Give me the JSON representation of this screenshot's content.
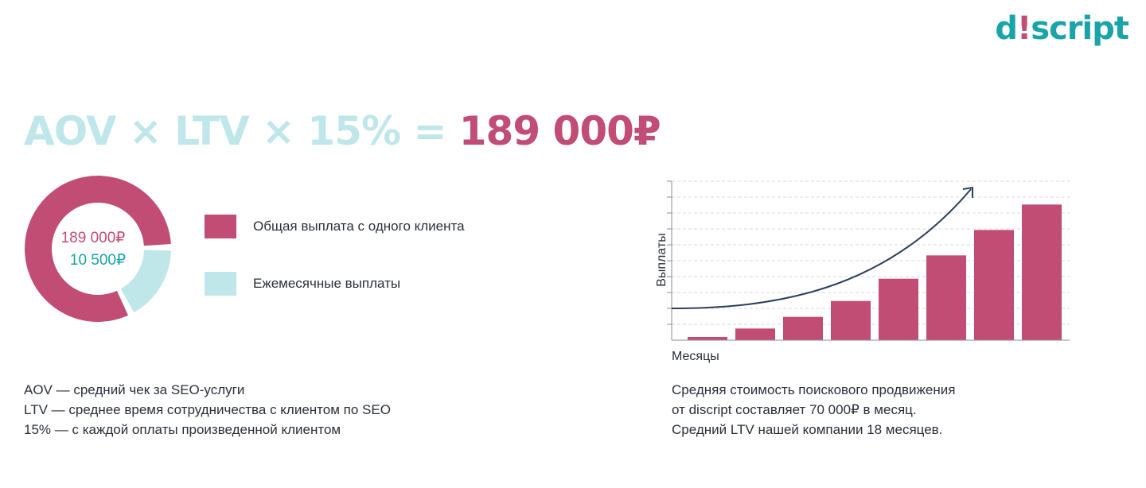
{
  "brand": {
    "logo_text_a": "d",
    "logo_text_dot": "!",
    "logo_text_b": "script",
    "accent_color": "#1aa3a8",
    "brand_color": "#c24d74"
  },
  "formula": {
    "left": "AOV × LTV × 15% =",
    "result": "189 000₽"
  },
  "donut": {
    "total_label": "189 000₽",
    "monthly_label": "10 500₽",
    "total_value": 189000,
    "monthly_value": 10500,
    "total_color": "#c24d74",
    "monthly_color": "#bfe7ea"
  },
  "legend": [
    {
      "label": "Общая выплата с одного клиента",
      "color": "#c24d74"
    },
    {
      "label": "Ежемесячные выплаты",
      "color": "#bfe7ea"
    }
  ],
  "notes": [
    "AOV — средний чек за SEO-услуги",
    "LTV — среднее время сотрудничества с клиентом по SEO",
    "15% — с каждой оплаты произведенной клиентом"
  ],
  "chart_data": {
    "type": "bar",
    "categories": [
      "",
      "",
      "",
      "",
      "",
      "",
      "",
      ""
    ],
    "values": [
      1.5,
      5.5,
      11,
      18.5,
      29,
      40,
      52,
      64
    ],
    "ylim": [
      0,
      75
    ],
    "xlabel": "Месяцы",
    "ylabel": "Выплаты",
    "bar_color": "#c24d74",
    "trend_color": "#2b3f5c",
    "grid": true
  },
  "description": [
    "Средняя стоимость поискового продвижения",
    "от discript составляет 70 000₽ в месяц.",
    "Средний LTV нашей компании 18 месяцев."
  ]
}
